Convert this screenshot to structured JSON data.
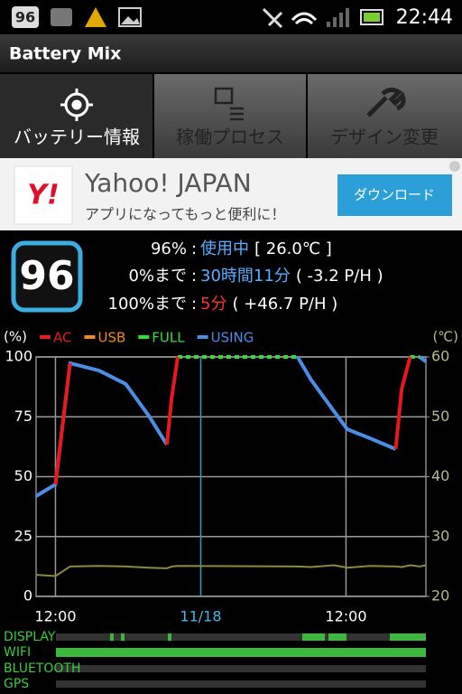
{
  "status_bar": {
    "badge": "96",
    "time": "22:44"
  },
  "app_bar": {
    "title": "Battery Mix"
  },
  "tabs": [
    "バッテリー情報",
    "稼働プロセス",
    "デザイン変更"
  ],
  "ad": {
    "logo": "Y!",
    "title": "Yahoo! JAPAN",
    "subtitle": "アプリになってもっと便利に！",
    "button": "ダウンロード"
  },
  "battery": {
    "badge": "96",
    "rows": [
      {
        "label": "96%",
        "sep": ":",
        "value": "使用中",
        "detail": "[ 26.0℃ ]"
      },
      {
        "label": "0%まで",
        "sep": ":",
        "value": "30時間11分",
        "detail": "( -3.2 P/H )"
      },
      {
        "label": "100%まで",
        "sep": ":",
        "value": "5分",
        "detail": "( +46.7 P/H )"
      }
    ]
  },
  "chart_data": {
    "type": "line",
    "y_label": "(%)",
    "y2_label": "(℃)",
    "x": [
      -1.6,
      0,
      1.2,
      3.6,
      5.8,
      7.7,
      9.2,
      9.6,
      10.1,
      20.0,
      21.1,
      23.0,
      24.1,
      26.0,
      28.1,
      28.6,
      29.3,
      30.1,
      30.6
    ],
    "xlim": [
      -1.6,
      30.6
    ],
    "xticks": [
      {
        "value": 0,
        "label": "12:00"
      },
      {
        "value": 12,
        "label": "11/18"
      },
      {
        "value": 24,
        "label": "12:00"
      }
    ],
    "ylim": [
      0,
      100
    ],
    "yticks": [
      0,
      25,
      50,
      75,
      100
    ],
    "y2lim": [
      20,
      60
    ],
    "y2ticks": [
      20,
      30,
      40,
      50,
      60
    ],
    "grid": true,
    "series": [
      {
        "name": "USING",
        "color": "#4a8ee8",
        "values": [
          41.9,
          46.8,
          97.4,
          94.3,
          88.7,
          75.5,
          63.4,
          null,
          null,
          100,
          90.6,
          77.4,
          69.8,
          66,
          61.5,
          null,
          null,
          100,
          98
        ]
      },
      {
        "name": "AC",
        "color": "#e8181c",
        "values": [
          null,
          46.8,
          97.4,
          null,
          null,
          null,
          63.4,
          83,
          100,
          null,
          null,
          null,
          null,
          null,
          61.5,
          86.8,
          100,
          null,
          null
        ]
      },
      {
        "name": "USB",
        "color": "#f08a18",
        "values": [
          null,
          null,
          null,
          null,
          null,
          null,
          null,
          null,
          null,
          null,
          null,
          null,
          null,
          null,
          null,
          null,
          null,
          null,
          null
        ]
      },
      {
        "name": "FULL",
        "color": "#30e030",
        "values": [
          null,
          null,
          null,
          null,
          null,
          null,
          null,
          null,
          100,
          100,
          null,
          null,
          null,
          null,
          null,
          null,
          100,
          100,
          null
        ]
      },
      {
        "color": "#8a8a40",
        "axis": "y2",
        "values": [
          23.6,
          23.4,
          25.0,
          25.1,
          25.0,
          24.8,
          24.7,
          25.0,
          25.1,
          25.0,
          24.9,
          25.2,
          24.8,
          25.1,
          25.0,
          24.9,
          25.2,
          25.0,
          25.2
        ]
      }
    ],
    "legend_order": [
      1,
      2,
      3,
      0
    ]
  },
  "activity": [
    "DISPLAY",
    "WIFI",
    "BLUETOOTH",
    "GPS"
  ]
}
